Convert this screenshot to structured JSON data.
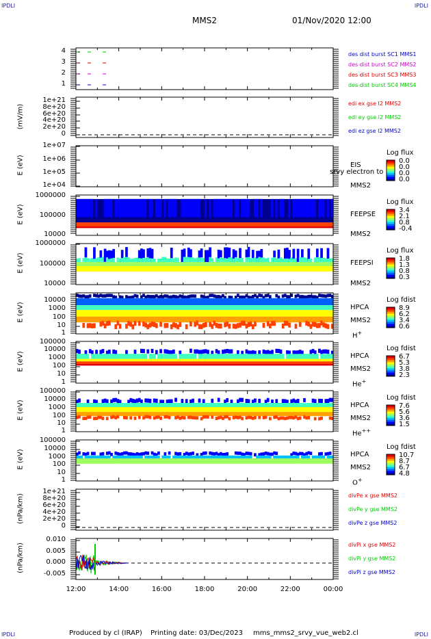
{
  "corner_labels": {
    "tl": "IPDLI",
    "tr": "IPDLI",
    "bl": "IPDLI",
    "br": "IPDLI"
  },
  "header": {
    "title": "MMS2",
    "date": "01/Nov/2020 12:00"
  },
  "footer": {
    "produced": "Produced by cl (IRAP)",
    "printed": "Printing date: 03/Dec/2023",
    "script": "mms_mms2_srvy_vue_web2.cl"
  },
  "x_axis": {
    "ticks": [
      "12:00",
      "14:00",
      "16:00",
      "18:00",
      "20:00",
      "22:00",
      "00:00"
    ]
  },
  "colors": {
    "red": "#e00000",
    "green": "#00cc00",
    "blue": "#0000cc",
    "magenta": "#cc00cc",
    "bar_red": "#ff0000",
    "bar_green": "#00dd00",
    "bar_blue": "#0000dd"
  },
  "panels": [
    {
      "id": "des",
      "ylabel": "",
      "ticks": [
        "4",
        "3",
        "2",
        "1"
      ],
      "legend": [
        {
          "text": "des dist burst SC1 MMS1",
          "color": "#0000cc"
        },
        {
          "text": "des dist burst SC2 MMS2",
          "color": "#cc00cc"
        },
        {
          "text": "des dist burst SC3 MMS3",
          "color": "#e00000"
        },
        {
          "text": "des dist burst SC4 MMS4",
          "color": "#00cc00"
        }
      ]
    },
    {
      "id": "edi",
      "ylabel": "(mV/m)",
      "ticks": [
        "1e+21",
        "8e+20",
        "6e+20",
        "4e+20",
        "2e+20",
        "0"
      ],
      "legend": [
        {
          "text": "edi ex gse l2 MMS2",
          "color": "#e00000"
        },
        {
          "text": "edi ey gse l2 MMS2",
          "color": "#00cc00"
        },
        {
          "text": "edi ez gse l2 MMS2",
          "color": "#0000cc"
        }
      ]
    },
    {
      "id": "eis",
      "ylabel": "E (eV)",
      "ticks": [
        "1e+07",
        "1e+06",
        "1e+05",
        "1e+04"
      ],
      "name": "EIS",
      "sc": "MMS2",
      "overlay": "srvy electron to",
      "cb_title": "Log flux",
      "cb_values": [
        "0.0",
        "0.0",
        "0.0",
        "0.0"
      ]
    },
    {
      "id": "feepse",
      "ylabel": "E (eV)",
      "ticks": [
        "1000000",
        "100000",
        "10000"
      ],
      "name": "FEEPSE",
      "sc": "MMS2",
      "cb_title": "Log flux",
      "cb_values": [
        "3.4",
        "2.1",
        "0.8",
        "-0.4"
      ]
    },
    {
      "id": "feepsi",
      "ylabel": "E (eV)",
      "ticks": [
        "1000000",
        "100000",
        "10000"
      ],
      "name": "FEEPSI",
      "sc": "MMS2",
      "cb_title": "Log flux",
      "cb_values": [
        "1.8",
        "1.3",
        "0.8",
        "0.3"
      ]
    },
    {
      "id": "hpca_h",
      "ylabel": "E (eV)",
      "ticks": [
        "10000",
        "1000",
        "100",
        "10",
        "1"
      ],
      "name": "HPCA",
      "sc": "MMS2",
      "species": "H",
      "charge": "+",
      "cb_title": "Log fdist",
      "cb_values": [
        "8.9",
        "6.2",
        "3.4",
        "0.6"
      ]
    },
    {
      "id": "hpca_he",
      "ylabel": "E (eV)",
      "ticks": [
        "100000",
        "10000",
        "1000",
        "100",
        "10",
        "1"
      ],
      "name": "HPCA",
      "sc": "MMS2",
      "species": "He",
      "charge": "+",
      "cb_title": "Log fdist",
      "cb_values": [
        "6.7",
        "5.3",
        "3.8",
        "2.3"
      ]
    },
    {
      "id": "hpca_hepp",
      "ylabel": "E (eV)",
      "ticks": [
        "100000",
        "10000",
        "1000",
        "100",
        "10",
        "1"
      ],
      "name": "HPCA",
      "sc": "MMS2",
      "species": "He",
      "charge": "++",
      "cb_title": "Log fdist",
      "cb_values": [
        "7.6",
        "5.6",
        "3.6",
        "1.5"
      ]
    },
    {
      "id": "hpca_o",
      "ylabel": "E (eV)",
      "ticks": [
        "100000",
        "10000",
        "1000",
        "100",
        "10",
        "1"
      ],
      "name": "HPCA",
      "sc": "MMS2",
      "species": "O",
      "charge": "+",
      "cb_title": "Log fdist",
      "cb_values": [
        "10.7",
        "8.7",
        "6.7",
        "4.8"
      ]
    },
    {
      "id": "divpe",
      "ylabel": "(nPa/km)",
      "ticks": [
        "1e+21",
        "8e+20",
        "6e+20",
        "4e+20",
        "2e+20",
        "0"
      ],
      "legend": [
        {
          "text": "divPe x gse MMS2",
          "color": "#e00000"
        },
        {
          "text": "divPe y gse MMS2",
          "color": "#00cc00"
        },
        {
          "text": "divPe z gse MMS2",
          "color": "#0000cc"
        }
      ]
    },
    {
      "id": "divpi",
      "ylabel": "(nPa/km)",
      "ticks": [
        "0.010",
        "0.005",
        "0.000",
        "-0.005"
      ],
      "legend": [
        {
          "text": "divPi x gse MMS2",
          "color": "#e00000"
        },
        {
          "text": "divPi y gse MMS2",
          "color": "#00cc00"
        },
        {
          "text": "divPi z gse MMS2",
          "color": "#0000cc"
        }
      ]
    }
  ],
  "chart_data": {
    "type": "spectrogram-stack",
    "title": "MMS2",
    "time_range": [
      "01/Nov/2020 12:00",
      "02/Nov/2020 00:00"
    ],
    "x_ticks": [
      "12:00",
      "14:00",
      "16:00",
      "18:00",
      "20:00",
      "22:00",
      "00:00"
    ],
    "panels": [
      {
        "name": "des dist burst",
        "type": "line",
        "series": [
          "SC1 MMS1",
          "SC2 MMS2",
          "SC3 MMS3",
          "SC4 MMS4"
        ],
        "ylim": [
          0.5,
          4.5
        ]
      },
      {
        "name": "edi e gse l2 MMS2",
        "type": "line",
        "ylabel": "(mV/m)",
        "ylim": [
          0,
          1e+21
        ],
        "values": "flat 0"
      },
      {
        "name": "EIS",
        "type": "heatmap",
        "ylabel": "E (eV)",
        "ylim": [
          10000.0,
          10000000.0
        ],
        "colorbar": [
          0.0,
          0.0,
          0.0,
          0.0
        ]
      },
      {
        "name": "FEEPSE",
        "type": "heatmap",
        "ylabel": "E (eV)",
        "ylim": [
          10000.0,
          1000000.0
        ],
        "colorbar": [
          -0.4,
          0.8,
          2.1,
          3.4
        ]
      },
      {
        "name": "FEEPSI",
        "type": "heatmap",
        "ylabel": "E (eV)",
        "ylim": [
          10000.0,
          1000000.0
        ],
        "colorbar": [
          0.3,
          0.8,
          1.3,
          1.8
        ]
      },
      {
        "name": "HPCA H+",
        "type": "heatmap",
        "ylabel": "E (eV)",
        "ylim": [
          1,
          10000.0
        ],
        "colorbar": [
          0.6,
          3.4,
          6.2,
          8.9
        ]
      },
      {
        "name": "HPCA He+",
        "type": "heatmap",
        "ylabel": "E (eV)",
        "ylim": [
          1,
          100000.0
        ],
        "colorbar": [
          2.3,
          3.8,
          5.3,
          6.7
        ]
      },
      {
        "name": "HPCA He++",
        "type": "heatmap",
        "ylabel": "E (eV)",
        "ylim": [
          1,
          100000.0
        ],
        "colorbar": [
          1.5,
          3.6,
          5.6,
          7.6
        ]
      },
      {
        "name": "HPCA O+",
        "type": "heatmap",
        "ylabel": "E (eV)",
        "ylim": [
          1,
          100000.0
        ],
        "colorbar": [
          4.8,
          6.7,
          8.7,
          10.7
        ]
      },
      {
        "name": "divPe gse MMS2",
        "type": "line",
        "ylabel": "(nPa/km)",
        "ylim": [
          0,
          1e+21
        ],
        "values": "flat 0"
      },
      {
        "name": "divPi gse MMS2",
        "type": "line",
        "ylabel": "(nPa/km)",
        "ylim": [
          -0.0075,
          0.0125
        ]
      }
    ]
  }
}
